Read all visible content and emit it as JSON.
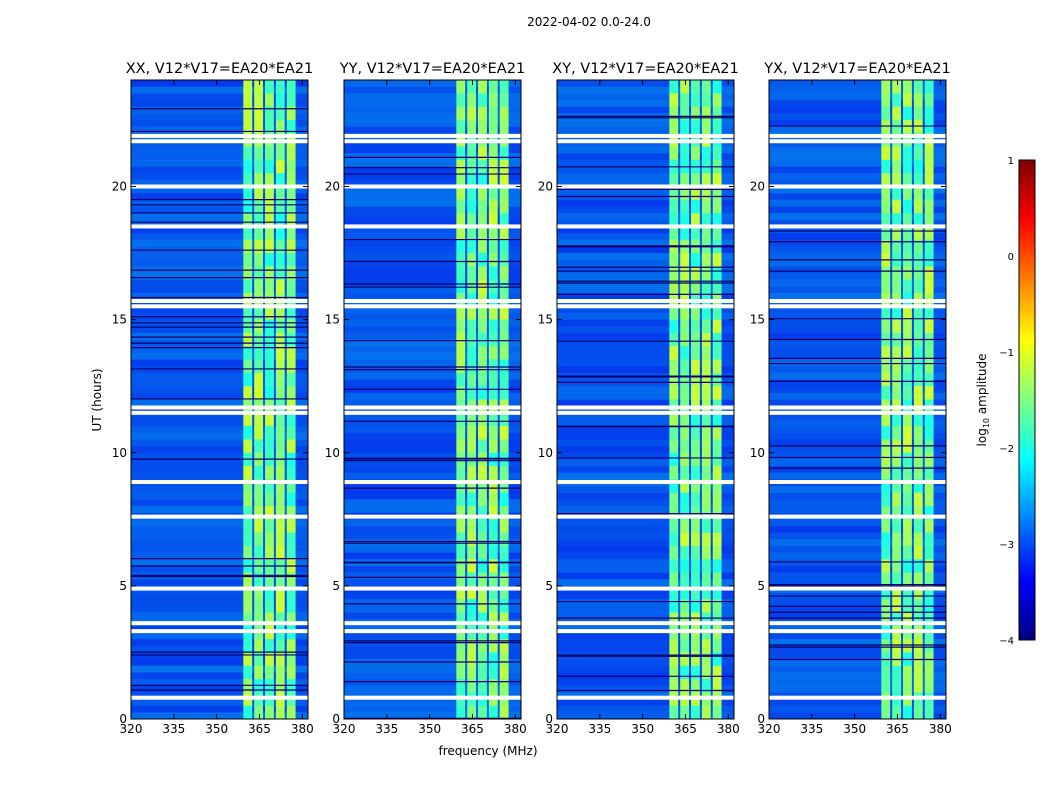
{
  "suptitle": "2022-04-02 0.0-24.0",
  "chart_data": [
    {
      "type": "heatmap",
      "title": "XX, V12*V17=EA20*EA21",
      "xlabel": "",
      "ylabel": "UT (hours)",
      "xlim": [
        320,
        382
      ],
      "ylim": [
        0,
        24
      ],
      "xticks": [
        "320",
        "335",
        "350",
        "365",
        "380"
      ],
      "yticks": [
        "0",
        "5",
        "10",
        "15",
        "20"
      ],
      "bright_band_mhz": [
        359,
        378
      ],
      "flag_gaps_hours": [
        0.8,
        3.3,
        3.6,
        4.9,
        7.6,
        8.9,
        11.5,
        11.7,
        15.5,
        15.7,
        18.5,
        20.0,
        21.7,
        21.9
      ]
    },
    {
      "type": "heatmap",
      "title": "YY, V12*V17=EA20*EA21",
      "xlabel": "frequency (MHz)",
      "ylabel": "",
      "xlim": [
        320,
        382
      ],
      "ylim": [
        0,
        24
      ],
      "xticks": [
        "320",
        "335",
        "350",
        "365",
        "380"
      ],
      "yticks": [
        "0",
        "5",
        "10",
        "15",
        "20"
      ],
      "bright_band_mhz": [
        359,
        378
      ],
      "flag_gaps_hours": [
        0.8,
        3.3,
        3.6,
        4.9,
        7.6,
        8.9,
        11.5,
        11.7,
        15.5,
        15.7,
        18.5,
        20.0,
        21.7,
        21.9
      ]
    },
    {
      "type": "heatmap",
      "title": "XY, V12*V17=EA20*EA21",
      "xlabel": "",
      "ylabel": "",
      "xlim": [
        320,
        382
      ],
      "ylim": [
        0,
        24
      ],
      "xticks": [
        "320",
        "335",
        "350",
        "365",
        "380"
      ],
      "yticks": [
        "0",
        "5",
        "10",
        "15",
        "20"
      ],
      "bright_band_mhz": [
        359,
        378
      ],
      "flag_gaps_hours": [
        0.8,
        3.3,
        3.6,
        4.9,
        7.6,
        8.9,
        11.5,
        11.7,
        15.5,
        15.7,
        18.5,
        20.0,
        21.7,
        21.9
      ]
    },
    {
      "type": "heatmap",
      "title": "YX, V12*V17=EA20*EA21",
      "xlabel": "",
      "ylabel": "",
      "xlim": [
        320,
        382
      ],
      "ylim": [
        0,
        24
      ],
      "xticks": [
        "320",
        "335",
        "350",
        "365",
        "380"
      ],
      "yticks": [
        "0",
        "5",
        "10",
        "15",
        "20"
      ],
      "bright_band_mhz": [
        359,
        378
      ],
      "flag_gaps_hours": [
        0.8,
        3.3,
        3.6,
        4.9,
        7.6,
        8.9,
        11.5,
        11.7,
        15.5,
        15.7,
        18.5,
        20.0,
        21.7,
        21.9
      ]
    }
  ],
  "colorbar": {
    "label": "log",
    "label_sub": "10",
    "label_suffix": " amplitude",
    "range": [
      -4,
      1
    ],
    "ticks": [
      "1",
      "0",
      "−1",
      "−2",
      "−3",
      "−4"
    ],
    "colormap": [
      "#00007f",
      "#0000ff",
      "#007fff",
      "#00ffff",
      "#7fff7f",
      "#ffff00",
      "#ff7f00",
      "#ff0000",
      "#7f0000"
    ]
  }
}
